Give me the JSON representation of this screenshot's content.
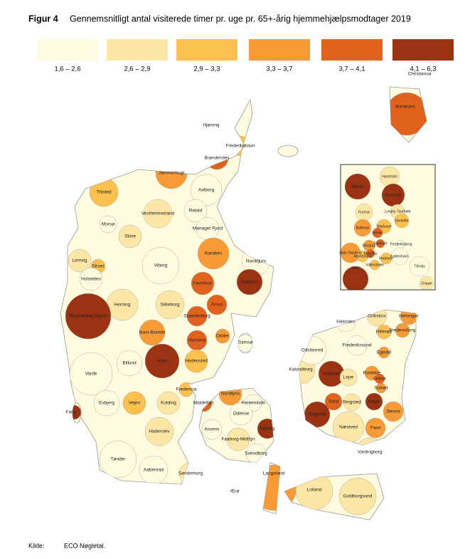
{
  "header": {
    "label": "Figur 4",
    "title": "Gennemsnitligt antal visiterede timer pr. uge pr. 65+-årig hjemmehjælpsmodtager 2019"
  },
  "legend": [
    {
      "label": "1,6 – 2,6",
      "color": "#fffbdf"
    },
    {
      "label": "2,6 – 2,9",
      "color": "#fde7a6"
    },
    {
      "label": "2,9 – 3,3",
      "color": "#fcc04f"
    },
    {
      "label": "3,3 – 3,7",
      "color": "#f89a36"
    },
    {
      "label": "3,7 – 4,1",
      "color": "#e0621c"
    },
    {
      "label": "4,1 – 6,3",
      "color": "#9b3312"
    }
  ],
  "places": [
    {
      "name": "Hjørring",
      "class": 1
    },
    {
      "name": "Frederikshavn",
      "class": 2
    },
    {
      "name": "Brønderslev",
      "class": 4
    },
    {
      "name": "Jammerbugt",
      "class": 3
    },
    {
      "name": "Thisted",
      "class": 2
    },
    {
      "name": "Aalborg",
      "class": 0
    },
    {
      "name": "Vesthimmerland",
      "class": 1
    },
    {
      "name": "Rebild",
      "class": 0
    },
    {
      "name": "Mariager Fjord",
      "class": 0
    },
    {
      "name": "Morsø",
      "class": 0
    },
    {
      "name": "Skive",
      "class": 1
    },
    {
      "name": "Randers",
      "class": 3
    },
    {
      "name": "Norddjurs",
      "class": 0
    },
    {
      "name": "Lemvig",
      "class": 1
    },
    {
      "name": "Struer",
      "class": 2
    },
    {
      "name": "Viborg",
      "class": 0
    },
    {
      "name": "Favrskov",
      "class": 4
    },
    {
      "name": "Syddjurs",
      "class": 5
    },
    {
      "name": "Holstebro",
      "class": 0
    },
    {
      "name": "Herning",
      "class": 1
    },
    {
      "name": "Silkeborg",
      "class": 1
    },
    {
      "name": "Århus",
      "class": 4
    },
    {
      "name": "Ringkøbing-Skjern",
      "class": 5
    },
    {
      "name": "Skanderborg",
      "class": 4
    },
    {
      "name": "Ikast-Brande",
      "class": 3
    },
    {
      "name": "Horsens",
      "class": 4
    },
    {
      "name": "Odder",
      "class": 3
    },
    {
      "name": "Samsø",
      "class": 0
    },
    {
      "name": "Hedensted",
      "class": 2
    },
    {
      "name": "Billund",
      "class": 0
    },
    {
      "name": "Vejle",
      "class": 5
    },
    {
      "name": "Varde",
      "class": 0
    },
    {
      "name": "Fredericia",
      "class": 2
    },
    {
      "name": "Nordfyns",
      "class": 3
    },
    {
      "name": "Kerteminde",
      "class": 0
    },
    {
      "name": "Esbjerg",
      "class": 0
    },
    {
      "name": "Vejen",
      "class": 2
    },
    {
      "name": "Kolding",
      "class": 1
    },
    {
      "name": "Middelfart",
      "class": 4
    },
    {
      "name": "Odense",
      "class": 0
    },
    {
      "name": "Fanø",
      "class": 5
    },
    {
      "name": "Nyborg",
      "class": 5
    },
    {
      "name": "Haderslev",
      "class": 1
    },
    {
      "name": "Assens",
      "class": 0
    },
    {
      "name": "Faaborg-Midtfyn",
      "class": 1
    },
    {
      "name": "Svendborg",
      "class": 0
    },
    {
      "name": "Tønder",
      "class": 0
    },
    {
      "name": "Aabenraa",
      "class": 0
    },
    {
      "name": "Sønderborg",
      "class": 1
    },
    {
      "name": "Langeland",
      "class": 3
    },
    {
      "name": "Ærø",
      "class": 0
    },
    {
      "name": "Lolland",
      "class": 1
    },
    {
      "name": "Guldborgsund",
      "class": 1
    },
    {
      "name": "Vordingborg",
      "class": 1
    },
    {
      "name": "Næstved",
      "class": 1
    },
    {
      "name": "Faxe",
      "class": 3
    },
    {
      "name": "Stevns",
      "class": 3
    },
    {
      "name": "Køge",
      "class": 5
    },
    {
      "name": "Ringsted",
      "class": 1
    },
    {
      "name": "Sorø",
      "class": 4
    },
    {
      "name": "Slagelse",
      "class": 5
    },
    {
      "name": "Holbæk",
      "class": 5
    },
    {
      "name": "Kalundborg",
      "class": 1
    },
    {
      "name": "Lejre",
      "class": 1
    },
    {
      "name": "Roskilde",
      "class": 3
    },
    {
      "name": "Odsherred",
      "class": 0
    },
    {
      "name": "Halsnæs",
      "class": 0
    },
    {
      "name": "Gribskov",
      "class": 1
    },
    {
      "name": "Helsingør",
      "class": 3
    },
    {
      "name": "Fredensborg",
      "class": 3
    },
    {
      "name": "Hillerød",
      "class": 2
    },
    {
      "name": "Frederikssund",
      "class": 0
    },
    {
      "name": "Egedal",
      "class": 3
    },
    {
      "name": "Solrød",
      "class": 3
    },
    {
      "name": "Greve",
      "class": 4
    },
    {
      "name": "Bornholm",
      "class": 4
    },
    {
      "name": "Christiansø",
      "class": 0
    }
  ],
  "inset_places": [
    {
      "name": "Hørsholm",
      "class": 1
    },
    {
      "name": "Allerød",
      "class": 5
    },
    {
      "name": "Rudersdal",
      "class": 5
    },
    {
      "name": "Lyngby-Taarbæk",
      "class": 1
    },
    {
      "name": "Furesø",
      "class": 1
    },
    {
      "name": "Gentofte",
      "class": 2
    },
    {
      "name": "Ballerup",
      "class": 3
    },
    {
      "name": "Gladsaxe",
      "class": 2
    },
    {
      "name": "Herlev",
      "class": 4
    },
    {
      "name": "Rødovre",
      "class": 4
    },
    {
      "name": "Glostrup",
      "class": 3
    },
    {
      "name": "Frederiksberg",
      "class": 0
    },
    {
      "name": "København",
      "class": 0
    },
    {
      "name": "Høje-Taastrup",
      "class": 3
    },
    {
      "name": "Albertslund",
      "class": 2
    },
    {
      "name": "Brøndby",
      "class": 4
    },
    {
      "name": "Hvidovre",
      "class": 2
    },
    {
      "name": "Vallensbæk",
      "class": 2
    },
    {
      "name": "Ishøj",
      "class": 5
    },
    {
      "name": "Tårnby",
      "class": 0
    },
    {
      "name": "Dragør",
      "class": 1
    }
  ],
  "source": {
    "label": "Kilde:",
    "text": "ECO Nøgletal."
  }
}
